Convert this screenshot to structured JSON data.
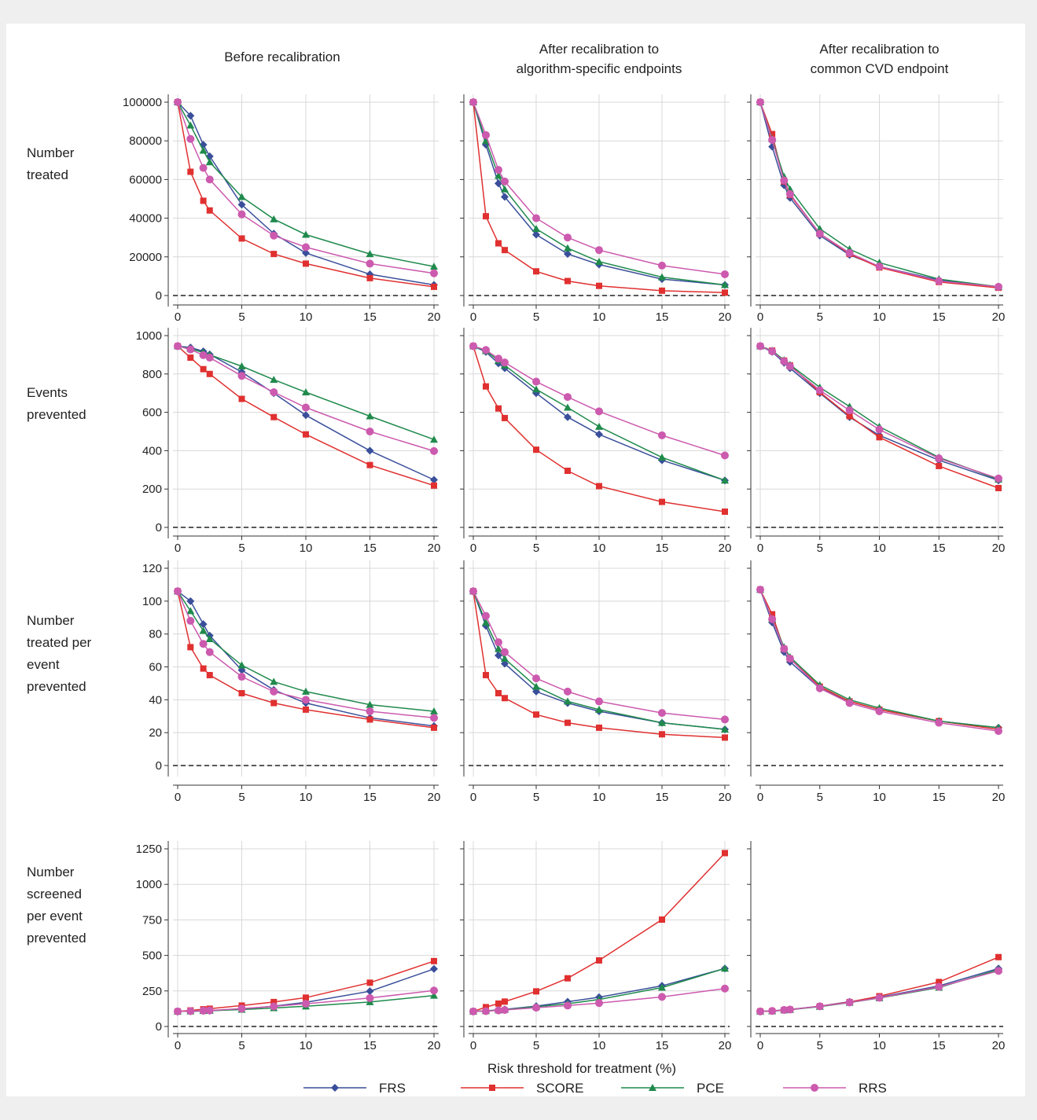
{
  "columns": [
    "Before recalibration",
    "After recalibration to\nalgorithm-specific endpoints",
    "After recalibration to\ncommon CVD endpoint"
  ],
  "rows": [
    "Number\ntreated",
    "Events\nprevented",
    "Number\ntreated per\nevent\nprevented",
    "Number\nscreened\nper event\nprevented"
  ],
  "xlabel": "Risk threshold for treatment (%)",
  "legend": {
    "position": "bottom-center"
  },
  "series_styles": [
    {
      "name": "FRS",
      "color": "#3a4f9a",
      "marker": "diamond"
    },
    {
      "name": "SCORE",
      "color": "#e03030",
      "marker": "square"
    },
    {
      "name": "PCE",
      "color": "#1f8a4c",
      "marker": "triangle"
    },
    {
      "name": "RRS",
      "color": "#cc5aae",
      "marker": "circle"
    }
  ],
  "chart_data": [
    {
      "type": "line",
      "id": "r0c0",
      "x": [
        0,
        1,
        2,
        2.5,
        5,
        7.5,
        10,
        15,
        20
      ],
      "xlim": [
        0,
        20
      ],
      "xticks": [
        0,
        5,
        10,
        15,
        20
      ],
      "ylim": [
        0,
        100000
      ],
      "yticks": [
        0,
        20000,
        40000,
        60000,
        80000,
        100000
      ],
      "grid": true,
      "reference_line": 0,
      "series": [
        {
          "name": "FRS",
          "values": [
            100000,
            93000,
            78000,
            72000,
            47000,
            32000,
            22000,
            11000,
            5500
          ]
        },
        {
          "name": "SCORE",
          "values": [
            100000,
            64000,
            49000,
            44000,
            29500,
            21500,
            16500,
            9000,
            4500
          ]
        },
        {
          "name": "PCE",
          "values": [
            100000,
            88000,
            75000,
            69000,
            51000,
            39500,
            31500,
            21500,
            15000
          ]
        },
        {
          "name": "RRS",
          "values": [
            100000,
            81000,
            66000,
            60000,
            42000,
            31000,
            25000,
            16500,
            11500
          ]
        }
      ]
    },
    {
      "type": "line",
      "id": "r0c1",
      "x": [
        0,
        1,
        2,
        2.5,
        5,
        7.5,
        10,
        15,
        20
      ],
      "xlim": [
        0,
        20
      ],
      "xticks": [
        0,
        5,
        10,
        15,
        20
      ],
      "ylim": [
        0,
        100000
      ],
      "yticks": [
        0,
        20000,
        40000,
        60000,
        80000,
        100000
      ],
      "grid": true,
      "reference_line": 0,
      "series": [
        {
          "name": "FRS",
          "values": [
            100000,
            78000,
            58000,
            51000,
            31500,
            21500,
            16000,
            8500,
            5500
          ]
        },
        {
          "name": "SCORE",
          "values": [
            100000,
            41000,
            27000,
            23500,
            12500,
            7500,
            5000,
            2500,
            1500
          ]
        },
        {
          "name": "PCE",
          "values": [
            100000,
            80000,
            62000,
            55000,
            34500,
            24500,
            17500,
            9500,
            5500
          ]
        },
        {
          "name": "RRS",
          "values": [
            100000,
            83000,
            65000,
            59000,
            40000,
            30000,
            23500,
            15500,
            11000
          ]
        }
      ]
    },
    {
      "type": "line",
      "id": "r0c2",
      "x": [
        0,
        1,
        2,
        2.5,
        5,
        7.5,
        10,
        15,
        20
      ],
      "xlim": [
        0,
        20
      ],
      "xticks": [
        0,
        5,
        10,
        15,
        20
      ],
      "ylim": [
        0,
        100000
      ],
      "yticks": [
        0,
        20000,
        40000,
        60000,
        80000,
        100000
      ],
      "grid": true,
      "reference_line": 0,
      "series": [
        {
          "name": "FRS",
          "values": [
            100000,
            77000,
            57000,
            50500,
            31000,
            21000,
            15000,
            8000,
            4500
          ]
        },
        {
          "name": "SCORE",
          "values": [
            100000,
            83500,
            59000,
            52000,
            32000,
            21500,
            14500,
            7000,
            4000
          ]
        },
        {
          "name": "PCE",
          "values": [
            100000,
            81000,
            61500,
            55000,
            34500,
            24000,
            17000,
            8500,
            4500
          ]
        },
        {
          "name": "RRS",
          "values": [
            100000,
            80500,
            59500,
            52500,
            32000,
            22000,
            15000,
            7500,
            4500
          ]
        }
      ]
    },
    {
      "type": "line",
      "id": "r1c0",
      "x": [
        0,
        1,
        2,
        2.5,
        5,
        7.5,
        10,
        15,
        20
      ],
      "xlim": [
        0,
        20
      ],
      "xticks": [
        0,
        5,
        10,
        15,
        20
      ],
      "ylim": [
        0,
        1000
      ],
      "yticks": [
        0,
        200,
        400,
        600,
        800,
        1000
      ],
      "grid": true,
      "reference_line": 0,
      "series": [
        {
          "name": "FRS",
          "values": [
            945,
            938,
            918,
            902,
            810,
            700,
            585,
            400,
            248
          ]
        },
        {
          "name": "SCORE",
          "values": [
            945,
            885,
            825,
            800,
            670,
            575,
            485,
            325,
            218
          ]
        },
        {
          "name": "PCE",
          "values": [
            945,
            932,
            912,
            900,
            840,
            770,
            705,
            580,
            458
          ]
        },
        {
          "name": "RRS",
          "values": [
            945,
            928,
            898,
            885,
            790,
            705,
            625,
            500,
            398
          ]
        }
      ]
    },
    {
      "type": "line",
      "id": "r1c1",
      "x": [
        0,
        1,
        2,
        2.5,
        5,
        7.5,
        10,
        15,
        20
      ],
      "xlim": [
        0,
        20
      ],
      "xticks": [
        0,
        5,
        10,
        15,
        20
      ],
      "ylim": [
        0,
        1000
      ],
      "yticks": [
        0,
        200,
        400,
        600,
        800,
        1000
      ],
      "grid": true,
      "reference_line": 0,
      "series": [
        {
          "name": "FRS",
          "values": [
            945,
            915,
            855,
            830,
            700,
            575,
            485,
            350,
            245
          ]
        },
        {
          "name": "SCORE",
          "values": [
            945,
            735,
            620,
            570,
            405,
            295,
            215,
            133,
            82
          ]
        },
        {
          "name": "PCE",
          "values": [
            945,
            920,
            870,
            845,
            720,
            625,
            525,
            365,
            245
          ]
        },
        {
          "name": "RRS",
          "values": [
            945,
            925,
            880,
            860,
            760,
            680,
            605,
            480,
            375
          ]
        }
      ]
    },
    {
      "type": "line",
      "id": "r1c2",
      "x": [
        0,
        1,
        2,
        2.5,
        5,
        7.5,
        10,
        15,
        20
      ],
      "xlim": [
        0,
        20
      ],
      "xticks": [
        0,
        5,
        10,
        15,
        20
      ],
      "ylim": [
        0,
        1000
      ],
      "yticks": [
        0,
        200,
        400,
        600,
        800,
        1000
      ],
      "grid": true,
      "reference_line": 0,
      "series": [
        {
          "name": "FRS",
          "values": [
            945,
            915,
            858,
            830,
            700,
            575,
            480,
            350,
            245
          ]
        },
        {
          "name": "SCORE",
          "values": [
            945,
            922,
            870,
            845,
            705,
            580,
            470,
            320,
            205
          ]
        },
        {
          "name": "PCE",
          "values": [
            945,
            922,
            872,
            848,
            730,
            630,
            525,
            365,
            250
          ]
        },
        {
          "name": "RRS",
          "values": [
            945,
            918,
            866,
            840,
            715,
            610,
            510,
            360,
            255
          ]
        }
      ]
    },
    {
      "type": "line",
      "id": "r2c0",
      "x": [
        0,
        1,
        2,
        2.5,
        5,
        7.5,
        10,
        15,
        20
      ],
      "xlim": [
        0,
        20
      ],
      "xticks": [
        0,
        5,
        10,
        15,
        20
      ],
      "ylim": [
        0,
        120
      ],
      "yticks": [
        0,
        20,
        40,
        60,
        80,
        100,
        120
      ],
      "grid": true,
      "reference_line": 0,
      "series": [
        {
          "name": "FRS",
          "values": [
            106,
            100,
            86,
            79,
            58,
            46,
            38,
            29,
            24
          ]
        },
        {
          "name": "SCORE",
          "values": [
            106,
            72,
            59,
            55,
            44,
            38,
            34,
            28,
            23
          ]
        },
        {
          "name": "PCE",
          "values": [
            106,
            94,
            82,
            77,
            61,
            51,
            45,
            37,
            33
          ]
        },
        {
          "name": "RRS",
          "values": [
            106,
            88,
            74,
            69,
            54,
            45,
            40,
            33,
            29
          ]
        }
      ]
    },
    {
      "type": "line",
      "id": "r2c1",
      "x": [
        0,
        1,
        2,
        2.5,
        5,
        7.5,
        10,
        15,
        20
      ],
      "xlim": [
        0,
        20
      ],
      "xticks": [
        0,
        5,
        10,
        15,
        20
      ],
      "ylim": [
        0,
        120
      ],
      "yticks": [
        0,
        20,
        40,
        60,
        80,
        100,
        120
      ],
      "grid": true,
      "reference_line": 0,
      "series": [
        {
          "name": "FRS",
          "values": [
            106,
            85,
            67,
            62,
            45,
            38,
            33,
            26,
            22
          ]
        },
        {
          "name": "SCORE",
          "values": [
            106,
            55,
            44,
            41,
            31,
            26,
            23,
            19,
            17
          ]
        },
        {
          "name": "PCE",
          "values": [
            106,
            87,
            71,
            65,
            48,
            39,
            34,
            26,
            22
          ]
        },
        {
          "name": "RRS",
          "values": [
            106,
            91,
            75,
            69,
            53,
            45,
            39,
            32,
            28
          ]
        }
      ]
    },
    {
      "type": "line",
      "id": "r2c2",
      "x": [
        0,
        1,
        2,
        2.5,
        5,
        7.5,
        10,
        15,
        20
      ],
      "xlim": [
        0,
        20
      ],
      "xticks": [
        0,
        5,
        10,
        15,
        20
      ],
      "ylim": [
        0,
        120
      ],
      "yticks": [
        0,
        20,
        40,
        60,
        80,
        100,
        120
      ],
      "grid": false,
      "reference_line": 0,
      "series": [
        {
          "name": "FRS",
          "values": [
            107,
            87,
            69,
            63,
            47,
            39,
            34,
            27,
            23
          ]
        },
        {
          "name": "SCORE",
          "values": [
            107,
            92,
            71,
            65,
            48,
            39,
            34,
            27,
            22
          ]
        },
        {
          "name": "PCE",
          "values": [
            107,
            89,
            72,
            66,
            49,
            40,
            35,
            27,
            23
          ]
        },
        {
          "name": "RRS",
          "values": [
            107,
            89,
            71,
            65,
            47,
            38,
            33,
            26,
            21
          ]
        }
      ]
    },
    {
      "type": "line",
      "id": "r3c0",
      "x": [
        0,
        1,
        2,
        2.5,
        5,
        7.5,
        10,
        15,
        20
      ],
      "xlim": [
        0,
        20
      ],
      "xticks": [
        0,
        5,
        10,
        15,
        20
      ],
      "ylim": [
        0,
        1250
      ],
      "yticks": [
        0,
        250,
        500,
        750,
        1000,
        1250
      ],
      "grid": true,
      "reference_line": 0,
      "series": [
        {
          "name": "FRS",
          "values": [
            106,
            107,
            109,
            110,
            123,
            143,
            170,
            248,
            405
          ]
        },
        {
          "name": "SCORE",
          "values": [
            106,
            113,
            121,
            125,
            147,
            172,
            203,
            308,
            460
          ]
        },
        {
          "name": "PCE",
          "values": [
            106,
            107,
            110,
            111,
            119,
            130,
            142,
            172,
            218
          ]
        },
        {
          "name": "RRS",
          "values": [
            106,
            108,
            111,
            113,
            126,
            141,
            160,
            200,
            253
          ]
        }
      ]
    },
    {
      "type": "line",
      "id": "r3c1",
      "x": [
        0,
        1,
        2,
        2.5,
        5,
        7.5,
        10,
        15,
        20
      ],
      "xlim": [
        0,
        20
      ],
      "xticks": [
        0,
        5,
        10,
        15,
        20
      ],
      "ylim": [
        0,
        1250
      ],
      "yticks": [
        0,
        250,
        500,
        750,
        1000,
        1250
      ],
      "grid": true,
      "reference_line": 0,
      "series": [
        {
          "name": "FRS",
          "values": [
            106,
            109,
            117,
            120,
            143,
            174,
            206,
            286,
            408
          ]
        },
        {
          "name": "SCORE",
          "values": [
            106,
            136,
            161,
            175,
            247,
            339,
            465,
            752,
            1220
          ]
        },
        {
          "name": "PCE",
          "values": [
            106,
            109,
            115,
            118,
            139,
            160,
            190,
            274,
            408
          ]
        },
        {
          "name": "RRS",
          "values": [
            106,
            108,
            113,
            116,
            132,
            147,
            165,
            208,
            267
          ]
        }
      ]
    },
    {
      "type": "line",
      "id": "r3c2",
      "x": [
        0,
        1,
        2,
        2.5,
        5,
        7.5,
        10,
        15,
        20
      ],
      "xlim": [
        0,
        20
      ],
      "xticks": [
        0,
        5,
        10,
        15,
        20
      ],
      "ylim": [
        0,
        1250
      ],
      "yticks": [
        0,
        250,
        500,
        750,
        1000,
        1250
      ],
      "grid": false,
      "reference_line": 0,
      "series": [
        {
          "name": "FRS",
          "values": [
            106,
            109,
            117,
            120,
            143,
            174,
            206,
            286,
            408
          ]
        },
        {
          "name": "SCORE",
          "values": [
            106,
            108,
            115,
            118,
            142,
            172,
            213,
            313,
            488
          ]
        },
        {
          "name": "PCE",
          "values": [
            106,
            108,
            115,
            118,
            140,
            168,
            200,
            274,
            400
          ]
        },
        {
          "name": "RRS",
          "values": [
            106,
            109,
            116,
            119,
            142,
            169,
            202,
            279,
            391
          ]
        }
      ]
    }
  ]
}
